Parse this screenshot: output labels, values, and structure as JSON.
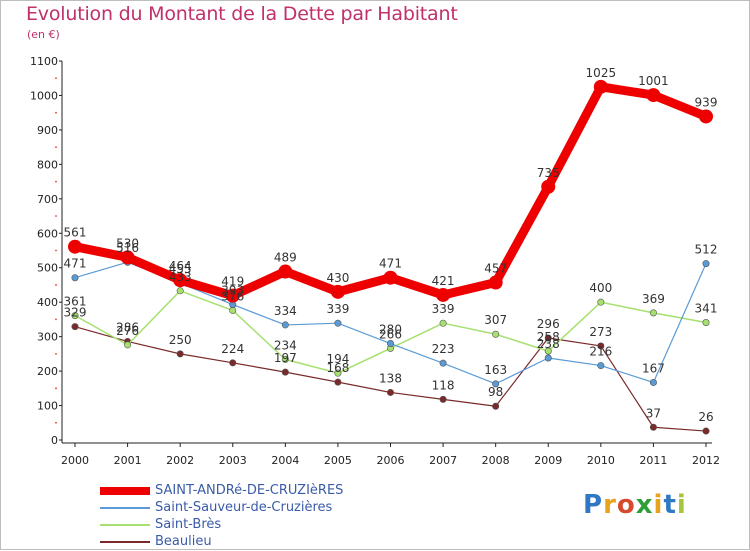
{
  "title": "Evolution du Montant de la Dette par Habitant",
  "subtitle": "(en €)",
  "logo": "Proxiti",
  "chart_data": {
    "type": "line",
    "x": [
      "2000",
      "2001",
      "2002",
      "2003",
      "2004",
      "2005",
      "2006",
      "2007",
      "2008",
      "2009",
      "2010",
      "2011",
      "2012"
    ],
    "ylim": [
      0,
      1100
    ],
    "yticks": [
      0,
      100,
      200,
      300,
      400,
      500,
      600,
      700,
      800,
      900,
      1000,
      1100
    ],
    "grid": false,
    "legend_position": "bottom-left",
    "series": [
      {
        "name": "SAINT-ANDRé-DE-CRUZIèRES",
        "color": "#ee0000",
        "width": 9,
        "marker": 7,
        "values": [
          561,
          530,
          464,
          419,
          489,
          430,
          471,
          421,
          457,
          735,
          1025,
          1001,
          939
        ]
      },
      {
        "name": "Saint-Sauveur-de-Cruzières",
        "color": "#5b9bd5",
        "width": 1.2,
        "marker": 3.2,
        "values": [
          471,
          516,
          455,
          393,
          334,
          339,
          280,
          223,
          163,
          238,
          216,
          167,
          512
        ]
      },
      {
        "name": "Saint-Brès",
        "color": "#a6e06f",
        "width": 1.5,
        "marker": 3.2,
        "values": [
          361,
          276,
          433,
          376,
          234,
          194,
          266,
          339,
          307,
          258,
          400,
          369,
          341
        ]
      },
      {
        "name": "Beaulieu",
        "color": "#7a2a2a",
        "width": 1.2,
        "marker": 3.2,
        "values": [
          329,
          286,
          250,
          224,
          197,
          168,
          138,
          118,
          98,
          296,
          273,
          37,
          26
        ]
      }
    ]
  }
}
